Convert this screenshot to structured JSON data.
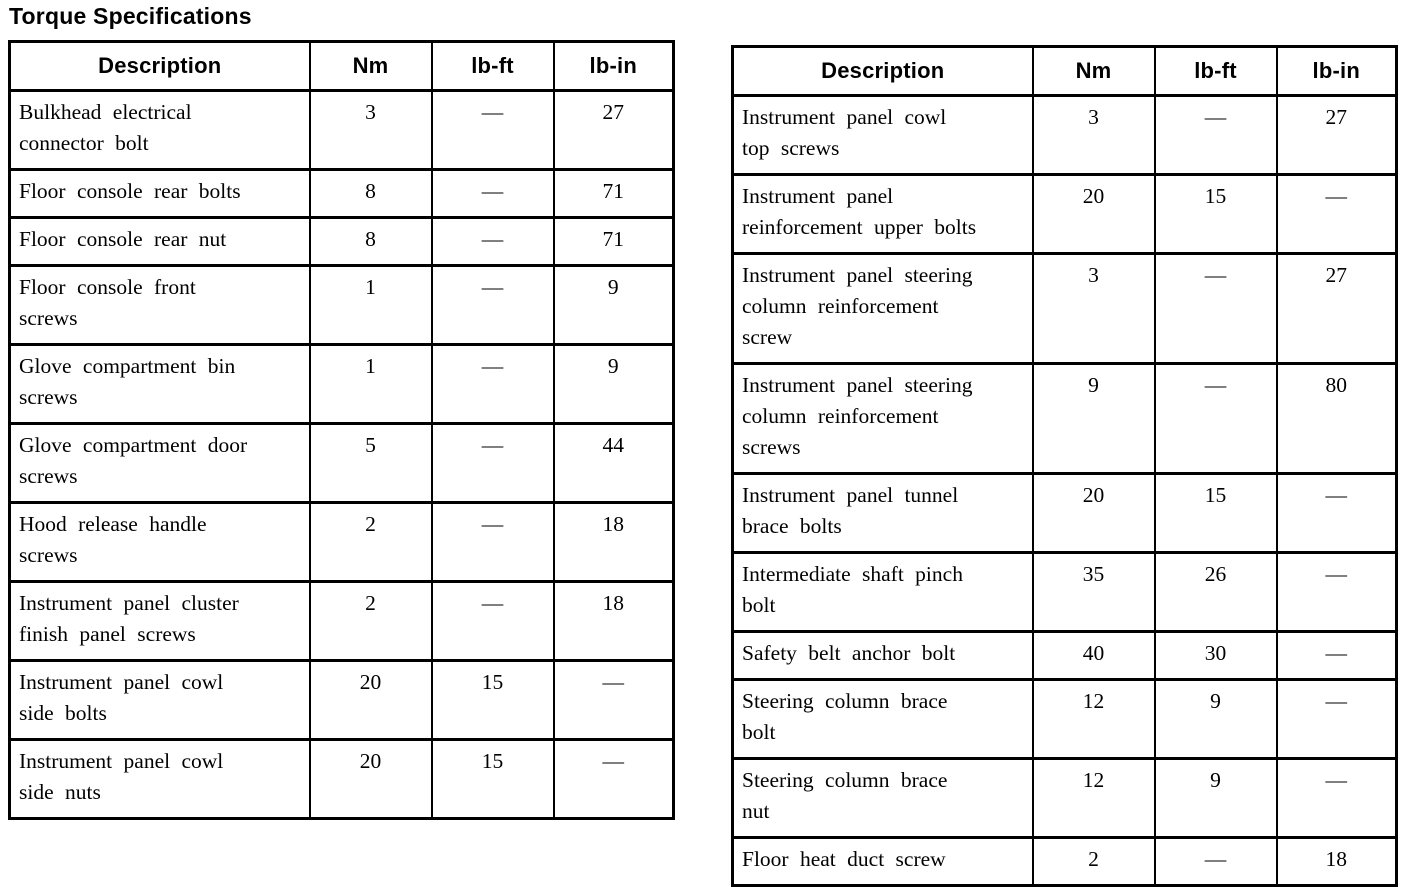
{
  "title": "Torque Specifications",
  "colors": {
    "text": "#000000",
    "background": "#ffffff",
    "table_border": "#000000"
  },
  "tables": [
    {
      "position": "left",
      "headers": [
        "Description",
        "Nm",
        "lb-ft",
        "lb-in"
      ],
      "rows": [
        [
          "Bulkhead electrical connector bolt",
          "3",
          "—",
          "27"
        ],
        [
          "Floor console rear bolts",
          "8",
          "—",
          "71"
        ],
        [
          "Floor console rear nut",
          "8",
          "—",
          "71"
        ],
        [
          "Floor console front screws",
          "1",
          "—",
          "9"
        ],
        [
          "Glove compartment bin screws",
          "1",
          "—",
          "9"
        ],
        [
          "Glove compartment door screws",
          "5",
          "—",
          "44"
        ],
        [
          "Hood release handle screws",
          "2",
          "—",
          "18"
        ],
        [
          "Instrument panel cluster finish panel screws",
          "2",
          "—",
          "18"
        ],
        [
          "Instrument panel cowl side bolts",
          "20",
          "15",
          "—"
        ],
        [
          "Instrument panel cowl side nuts",
          "20",
          "15",
          "—"
        ]
      ]
    },
    {
      "position": "right",
      "headers": [
        "Description",
        "Nm",
        "lb-ft",
        "lb-in"
      ],
      "rows": [
        [
          "Instrument panel cowl top screws",
          "3",
          "—",
          "27"
        ],
        [
          "Instrument panel reinforcement upper bolts",
          "20",
          "15",
          "—"
        ],
        [
          "Instrument panel steering column reinforcement screw",
          "3",
          "—",
          "27"
        ],
        [
          "Instrument panel steering column reinforcement screws",
          "9",
          "—",
          "80"
        ],
        [
          "Instrument panel tunnel brace bolts",
          "20",
          "15",
          "—"
        ],
        [
          "Intermediate shaft pinch bolt",
          "35",
          "26",
          "—"
        ],
        [
          "Safety belt anchor bolt",
          "40",
          "30",
          "—"
        ],
        [
          "Steering column brace bolt",
          "12",
          "9",
          "—"
        ],
        [
          "Steering column brace nut",
          "12",
          "9",
          "—"
        ],
        [
          "Floor heat duct screw",
          "2",
          "—",
          "18"
        ]
      ]
    }
  ]
}
